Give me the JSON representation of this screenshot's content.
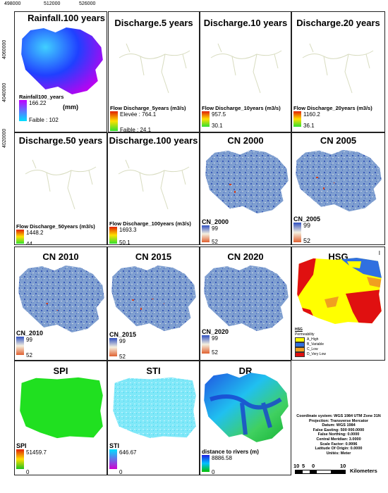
{
  "coords": {
    "x1": "498000",
    "x2": "512000",
    "x3": "526000",
    "y1": "4060000",
    "y2": "4040000",
    "y3": "4020000"
  },
  "panels": {
    "rain": {
      "title": "Rainfall.100 years",
      "legend_title": "Rainfall100_years",
      "max": "166.22",
      "unit": "(mm)",
      "min": "Faible : 102"
    },
    "d5": {
      "title": "Discharge.5 years",
      "legend_title": "Flow Discharge_5years (m3/s)",
      "max": "Elevée : 764.1",
      "min": "Faible : 24.1"
    },
    "d10": {
      "title": "Discharge.10 years",
      "legend_title": "Flow Discharge_10years (m3/s)",
      "max": "957.5",
      "min": "30.1"
    },
    "d20": {
      "title": "Discharge.20 years",
      "legend_title": "Flow Discharge_20years (m3/s)",
      "max": "1160.2",
      "min": "36.1"
    },
    "d50": {
      "title": "Discharge.50 years",
      "legend_title": "Flow Discharge_50years (m3/s)",
      "max": "1448.2",
      "min": "44"
    },
    "d100": {
      "title": "Discharge.100 years",
      "legend_title": "Flow Discharge_100years (m3/s)",
      "max": "1693.3",
      "min": "50.1"
    },
    "cn2000": {
      "title": "CN 2000",
      "legend_title": "CN_2000",
      "max": "99",
      "min": "52"
    },
    "cn2005": {
      "title": "CN 2005",
      "legend_title": "CN_2005",
      "max": "99",
      "min": "52"
    },
    "cn2010": {
      "title": "CN 2010",
      "legend_title": "CN_2010",
      "max": "99",
      "min": "52"
    },
    "cn2015": {
      "title": "CN 2015",
      "legend_title": "CN_2015",
      "max": "99",
      "min": "52"
    },
    "cn2020": {
      "title": "CN 2020",
      "legend_title": "CN_2020",
      "max": "99",
      "min": "52"
    },
    "hsg": {
      "title": "HSG",
      "legend_title": "HSG",
      "subtitle": "Permeability",
      "classes": [
        "A_High",
        "B_Variable",
        "C_Low",
        "D_Very Low"
      ],
      "colors": [
        "#ffff00",
        "#3070e0",
        "#f0a020",
        "#e01010"
      ],
      "corner": "I"
    },
    "spi": {
      "title": "SPI",
      "legend_title": "SPI",
      "max": "51459.7",
      "min": "0"
    },
    "sti": {
      "title": "STI",
      "legend_title": "STI",
      "max": "646.67",
      "min": "0"
    },
    "dr": {
      "title": "DR",
      "legend_title": "distance to rivers (m)",
      "max": "8886.58",
      "min": "0"
    }
  },
  "projection": {
    "lines": [
      "Coordinate system: WGS 1984 UTM Zone 31N",
      "Projection: Transverse Mercator",
      "Datum: WGS 1984",
      "False Easting: 500 000.0000",
      "False Northing: 0.0000",
      "Central Meridian: 3.0000",
      "Scale Factor: 0.9996",
      "Latitude Of Origin: 0.0000",
      "Unités: Meter"
    ]
  },
  "scale": {
    "ticks": [
      "10",
      "5",
      "0",
      "10"
    ],
    "unit": "Kilometers"
  }
}
